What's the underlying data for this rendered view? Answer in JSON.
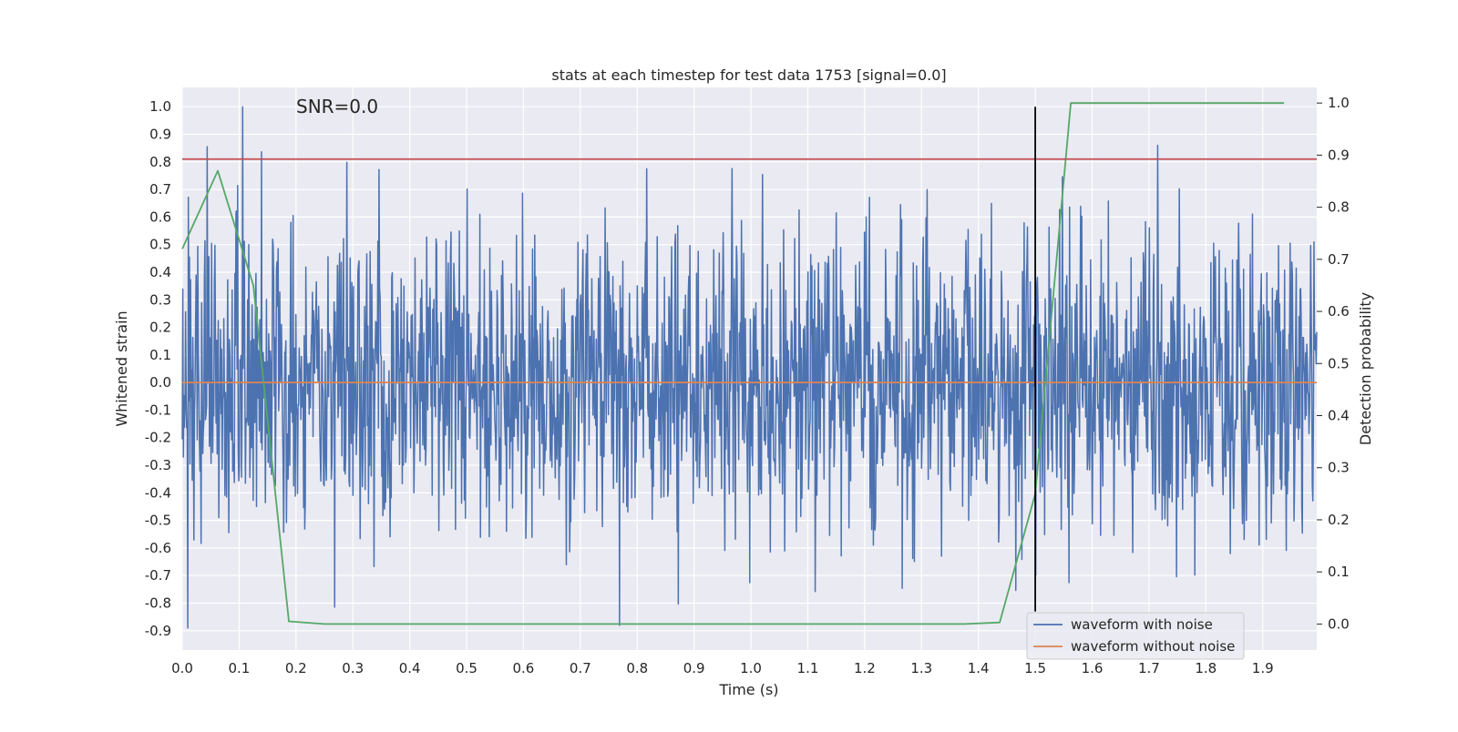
{
  "chart_data": {
    "type": "line",
    "title": "stats at each timestep for test data 1753 [signal=0.0]",
    "xlabel": "Time (s)",
    "ylabel": "Whitened strain",
    "y2label": "Detection probability",
    "annotation": "SNR=0.0",
    "xlim": [
      0.0,
      1.995
    ],
    "ylim": [
      -0.97,
      1.07
    ],
    "y2lim": [
      -0.05,
      1.03
    ],
    "xticks": [
      "0.0",
      "0.1",
      "0.2",
      "0.3",
      "0.4",
      "0.5",
      "0.6",
      "0.7",
      "0.8",
      "0.9",
      "1.0",
      "1.1",
      "1.2",
      "1.3",
      "1.4",
      "1.5",
      "1.6",
      "1.7",
      "1.8",
      "1.9"
    ],
    "yticks": [
      "1.0",
      "0.9",
      "0.8",
      "0.7",
      "0.6",
      "0.5",
      "0.4",
      "0.3",
      "0.2",
      "0.1",
      "0.0",
      "-0.1",
      "-0.2",
      "-0.3",
      "-0.4",
      "-0.5",
      "-0.6",
      "-0.7",
      "-0.8",
      "-0.9"
    ],
    "y2ticks": [
      "1.0",
      "0.9",
      "0.8",
      "0.7",
      "0.6",
      "0.5",
      "0.4",
      "0.3",
      "0.2",
      "0.1",
      "0.0"
    ],
    "grid": true,
    "legend_position": "lower-right",
    "series": [
      {
        "name": "waveform with noise",
        "color": "#4c72b0",
        "axis": "left",
        "noise": {
          "samples": 2048,
          "std": 0.28,
          "seed": 1753,
          "max": 1.0,
          "min": -0.89
        }
      },
      {
        "name": "waveform without noise",
        "color": "#dd8452",
        "axis": "left",
        "x": [
          0.0,
          1.995
        ],
        "y": [
          0.0,
          0.0
        ]
      },
      {
        "color": "#55a868",
        "axis": "right",
        "x": [
          0.0,
          0.0625,
          0.125,
          0.1875,
          0.25,
          0.3125,
          0.375,
          0.4375,
          0.5,
          0.5625,
          0.625,
          0.6875,
          0.75,
          0.8125,
          0.875,
          0.9375,
          1.0,
          1.0625,
          1.125,
          1.1875,
          1.25,
          1.3125,
          1.375,
          1.4375,
          1.5,
          1.5625,
          1.625,
          1.6875,
          1.75,
          1.8125,
          1.875,
          1.9375
        ],
        "y": [
          0.72,
          0.87,
          0.65,
          0.005,
          0.0,
          0.0,
          0.0,
          0.0,
          0.0,
          0.0,
          0.0,
          0.0,
          0.0,
          0.0,
          0.0,
          0.0,
          0.0,
          0.0,
          0.0,
          0.0,
          0.0,
          0.0,
          0.0,
          0.003,
          0.25,
          1.0,
          1.0,
          1.0,
          1.0,
          1.0,
          1.0,
          1.0
        ]
      },
      {
        "color": "#c44e52",
        "axis": "left",
        "x": [
          0.0,
          1.995
        ],
        "y": [
          0.81,
          0.81
        ]
      },
      {
        "color": "#000000",
        "axis": "left",
        "orientation": "vertical",
        "x": [
          1.5,
          1.5
        ],
        "y": [
          -0.83,
          1.0
        ]
      }
    ]
  }
}
